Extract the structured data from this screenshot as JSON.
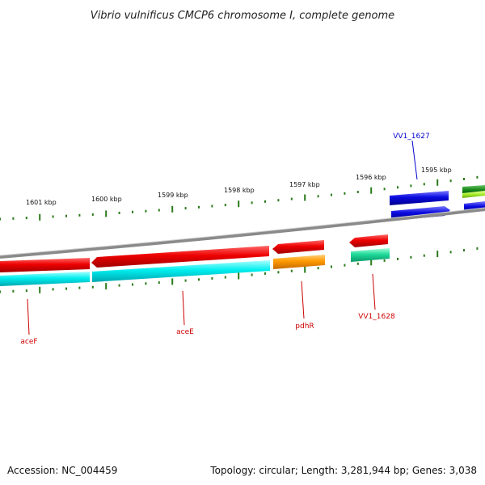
{
  "title": "Vibrio vulnificus CMCP6 chromosome I, complete genome",
  "footer": {
    "accession": "Accession: NC_004459",
    "summary": "Topology: circular; Length: 3,281,944 bp; Genes: 3,038"
  },
  "scale_labels": [
    "1601 kbp",
    "1600 kbp",
    "1599 kbp",
    "1598 kbp",
    "1597 kbp",
    "1596 kbp",
    "1595 kbp"
  ],
  "genes": [
    {
      "label": "aceF",
      "color": "#cc0000"
    },
    {
      "label": "aceE",
      "color": "#cc0000"
    },
    {
      "label": "pdhR",
      "color": "#cc0000"
    },
    {
      "label": "VV1_1628",
      "color": "#cc0000"
    },
    {
      "label": "VV1_1627",
      "color": "#0000cc"
    }
  ],
  "colors": {
    "backbone": "#8a8a8a",
    "tick": "#2a7a1a",
    "red_feature": "#ee0000",
    "cyan_feature": "#00e5ee",
    "orange_feature": "#ff9900",
    "teal_feature": "#1fd99a",
    "blue_feature": "#0a0ae0",
    "green_feature": "#1a8a1a",
    "lime_feature": "#a8ee2a"
  }
}
